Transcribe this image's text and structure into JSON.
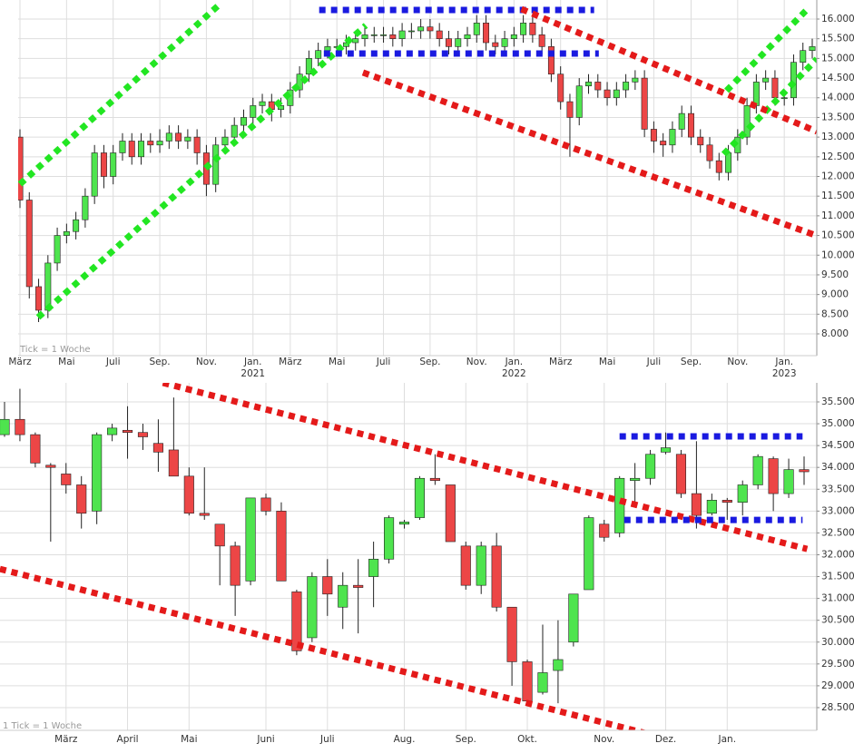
{
  "chart_data": [
    {
      "type": "candlestick",
      "up_color": "#4ee44e",
      "down_color": "#ec4646",
      "grid": true,
      "annotation": "Tick = 1 Woche",
      "categories": [
        "März",
        null,
        null,
        null,
        null,
        "Mai",
        null,
        null,
        null,
        null,
        "Juli",
        null,
        null,
        null,
        null,
        "Sep.",
        null,
        null,
        null,
        null,
        "Nov.",
        null,
        null,
        null,
        null,
        "Jan.",
        null,
        null,
        null,
        "März",
        null,
        null,
        null,
        null,
        "Mai",
        null,
        null,
        null,
        null,
        "Juli",
        null,
        null,
        null,
        null,
        "Sep.",
        null,
        null,
        null,
        null,
        "Nov.",
        null,
        null,
        null,
        "Jan.",
        null,
        null,
        null,
        null,
        "März",
        null,
        null,
        null,
        null,
        "Mai",
        null,
        null,
        null,
        null,
        "Juli",
        null,
        null,
        null,
        "Sep.",
        null,
        null,
        null,
        null,
        "Nov.",
        null,
        null,
        null,
        null,
        "Jan.",
        null,
        null,
        null
      ],
      "years": [
        null,
        null,
        null,
        null,
        null,
        null,
        null,
        null,
        null,
        null,
        null,
        null,
        null,
        null,
        null,
        null,
        null,
        null,
        null,
        null,
        null,
        null,
        null,
        null,
        null,
        "2021",
        null,
        null,
        null,
        null,
        null,
        null,
        null,
        null,
        null,
        null,
        null,
        null,
        null,
        null,
        null,
        null,
        null,
        null,
        null,
        null,
        null,
        null,
        null,
        null,
        null,
        null,
        null,
        "2022",
        null,
        null,
        null,
        null,
        null,
        null,
        null,
        null,
        null,
        null,
        null,
        null,
        null,
        null,
        null,
        null,
        null,
        null,
        null,
        null,
        null,
        null,
        null,
        null,
        null,
        null,
        null,
        null,
        "2023",
        null,
        null,
        null
      ],
      "open": [
        13000,
        11400,
        9200,
        8600,
        9800,
        10500,
        10600,
        10900,
        11500,
        12600,
        12000,
        12600,
        12900,
        12500,
        12900,
        12800,
        12900,
        13100,
        12900,
        13000,
        12600,
        11800,
        12800,
        13000,
        13300,
        13500,
        13800,
        13900,
        13700,
        13800,
        14200,
        14600,
        15000,
        15200,
        15300,
        15300,
        15400,
        15500,
        15600,
        15600,
        15600,
        15500,
        15700,
        15700,
        15800,
        15700,
        15500,
        15300,
        15500,
        15600,
        15900,
        15400,
        15300,
        15500,
        15600,
        15900,
        15600,
        15300,
        14600,
        13900,
        13500,
        14300,
        14400,
        14200,
        14000,
        14200,
        14400,
        14500,
        13200,
        12900,
        12800,
        13200,
        13600,
        13000,
        12800,
        12400,
        12100,
        12600,
        13000,
        13800,
        14400,
        14500,
        14000,
        14000,
        14900,
        15200
      ],
      "high": [
        13200,
        11600,
        9400,
        10000,
        10700,
        10800,
        11100,
        11700,
        12800,
        12800,
        12800,
        13100,
        13100,
        13100,
        13100,
        13200,
        13300,
        13300,
        13200,
        13200,
        12800,
        13000,
        13200,
        13500,
        13700,
        14000,
        14100,
        14100,
        14000,
        14400,
        14800,
        15200,
        15400,
        15500,
        15500,
        15600,
        15700,
        15800,
        15800,
        15800,
        15800,
        15900,
        15900,
        16000,
        16000,
        15900,
        15700,
        15700,
        15800,
        16100,
        16100,
        15600,
        15700,
        15800,
        16100,
        16100,
        15800,
        15500,
        14800,
        14100,
        14500,
        14600,
        14600,
        14400,
        14400,
        14600,
        14700,
        14700,
        13400,
        13100,
        13400,
        13800,
        13800,
        13200,
        13000,
        12600,
        12800,
        13200,
        14000,
        14600,
        14700,
        14700,
        14200,
        15100,
        15400,
        15500
      ],
      "low": [
        11200,
        8900,
        8300,
        8400,
        9600,
        10300,
        10400,
        10700,
        11300,
        11700,
        11800,
        12400,
        12300,
        12300,
        12600,
        12600,
        12700,
        12700,
        12700,
        12300,
        11500,
        11600,
        12600,
        12800,
        13100,
        13300,
        13600,
        13400,
        13500,
        13600,
        14000,
        14400,
        14800,
        15000,
        15100,
        15100,
        15200,
        15300,
        15400,
        15400,
        15300,
        15300,
        15500,
        15500,
        15500,
        15300,
        15100,
        15100,
        15300,
        15400,
        15200,
        15100,
        15100,
        15300,
        15400,
        15400,
        15100,
        14400,
        13700,
        12500,
        13300,
        14100,
        14000,
        13800,
        13800,
        14000,
        14200,
        13000,
        12600,
        12500,
        12600,
        13000,
        12800,
        12600,
        12200,
        11900,
        11900,
        12400,
        12800,
        13600,
        14200,
        13800,
        13800,
        13800,
        14700,
        15000
      ],
      "close": [
        11400,
        9200,
        8600,
        9800,
        10500,
        10600,
        10900,
        11500,
        12600,
        12000,
        12600,
        12900,
        12500,
        12900,
        12800,
        12900,
        13100,
        12900,
        13000,
        12600,
        11800,
        12800,
        13000,
        13300,
        13500,
        13800,
        13900,
        13700,
        13800,
        14200,
        14600,
        15000,
        15200,
        15300,
        15300,
        15400,
        15500,
        15600,
        15600,
        15600,
        15500,
        15700,
        15700,
        15800,
        15700,
        15500,
        15300,
        15500,
        15600,
        15900,
        15400,
        15300,
        15500,
        15600,
        15900,
        15600,
        15300,
        14600,
        13900,
        13500,
        14300,
        14400,
        14200,
        14000,
        14200,
        14400,
        14500,
        13200,
        12900,
        12800,
        13200,
        13600,
        13000,
        12800,
        12400,
        12100,
        12600,
        13000,
        13800,
        14400,
        14500,
        14000,
        14000,
        14900,
        15200,
        15300
      ],
      "lines": [
        {
          "color": "#22e622",
          "x": [
            0,
            21.4
          ],
          "y": [
            11806,
            16369
          ]
        },
        {
          "color": "#22e622",
          "x": [
            1.95,
            37.1
          ],
          "y": [
            8420,
            15839
          ]
        },
        {
          "color": "#22e622",
          "x": [
            75.5,
            85.5
          ],
          "y": [
            12567,
            14986
          ]
        },
        {
          "color": "#22e622",
          "x": [
            75.8,
            84.3
          ],
          "y": [
            14180,
            16207
          ]
        },
        {
          "color": "#1a1ae0",
          "x": [
            32.1,
            61.6
          ],
          "y": [
            16230,
            16230
          ]
        },
        {
          "color": "#1a1ae0",
          "x": [
            32.6,
            62.1
          ],
          "y": [
            15124,
            15124
          ]
        },
        {
          "color": "#e41a1a",
          "x": [
            53.8,
            85.5
          ],
          "y": [
            16253,
            13143
          ]
        },
        {
          "color": "#e41a1a",
          "x": [
            36.8,
            85.5
          ],
          "y": [
            14641,
            10493
          ]
        }
      ],
      "ylim": [
        7447,
        16484
      ],
      "yticks": [
        {
          "value": 8000,
          "label": "8.000"
        },
        {
          "value": 8500,
          "label": "8.500"
        },
        {
          "value": 9000,
          "label": "9.000"
        },
        {
          "value": 9500,
          "label": "9.500"
        },
        {
          "value": 10000,
          "label": "10.000"
        },
        {
          "value": 10500,
          "label": "10.500"
        },
        {
          "value": 11000,
          "label": "11.000"
        },
        {
          "value": 11500,
          "label": "11.500"
        },
        {
          "value": 12000,
          "label": "12.000"
        },
        {
          "value": 12500,
          "label": "12.500"
        },
        {
          "value": 13000,
          "label": "13.000"
        },
        {
          "value": 13500,
          "label": "13.500"
        },
        {
          "value": 14000,
          "label": "14.000"
        },
        {
          "value": 14500,
          "label": "14.500"
        },
        {
          "value": 15000,
          "label": "15.000"
        },
        {
          "value": 15500,
          "label": "15.500"
        },
        {
          "value": 16000,
          "label": "16.000"
        }
      ]
    },
    {
      "type": "candlestick",
      "up_color": "#4ee44e",
      "down_color": "#ec4646",
      "grid": true,
      "annotation": "1 Tick = 1 Woche",
      "categories": [
        null,
        null,
        null,
        null,
        "März",
        null,
        null,
        null,
        "April",
        null,
        null,
        null,
        "Mai",
        null,
        null,
        null,
        null,
        "Juni",
        null,
        null,
        null,
        "Juli",
        null,
        null,
        null,
        null,
        "Aug.",
        null,
        null,
        null,
        "Sep.",
        null,
        null,
        null,
        "Okt.",
        null,
        null,
        null,
        null,
        "Nov.",
        null,
        null,
        null,
        "Dez.",
        null,
        null,
        null,
        "Jan.",
        null,
        null,
        null,
        null,
        null
      ],
      "open": [
        34750,
        35100,
        34750,
        34050,
        33850,
        33600,
        33000,
        34750,
        34850,
        34800,
        34550,
        34400,
        33800,
        32950,
        32700,
        32200,
        31400,
        33300,
        33000,
        31150,
        30100,
        31500,
        30800,
        31300,
        31500,
        31900,
        32700,
        32850,
        33750,
        33600,
        32200,
        31300,
        32200,
        30800,
        29550,
        28850,
        29350,
        30000,
        31200,
        32700,
        32500,
        33700,
        33750,
        34350,
        34300,
        33400,
        32950,
        33250,
        33200,
        33600,
        34200,
        33400,
        33950
      ],
      "high": [
        35500,
        35800,
        34800,
        34100,
        34100,
        33800,
        34800,
        35000,
        35400,
        35000,
        35100,
        35600,
        34000,
        34000,
        32700,
        32300,
        33300,
        33400,
        33200,
        31200,
        31600,
        31900,
        31600,
        31900,
        32300,
        32900,
        32800,
        33800,
        34300,
        33600,
        32300,
        32300,
        32500,
        30800,
        29600,
        30400,
        30500,
        31100,
        32900,
        32800,
        33800,
        34100,
        34400,
        34800,
        34400,
        34600,
        33400,
        33300,
        33700,
        34300,
        34250,
        34200,
        34250
      ],
      "low": [
        34700,
        34600,
        34000,
        32300,
        33400,
        32600,
        32700,
        34600,
        34200,
        34400,
        33900,
        33800,
        32900,
        32800,
        31300,
        30600,
        31300,
        32900,
        31400,
        29700,
        30000,
        30600,
        30300,
        30200,
        30800,
        31800,
        32600,
        32800,
        33600,
        32300,
        31200,
        31100,
        30700,
        29000,
        28600,
        28800,
        28600,
        29900,
        31200,
        32300,
        32400,
        33200,
        33600,
        34300,
        33300,
        32600,
        32900,
        32800,
        32900,
        33500,
        33000,
        33300,
        33600
      ],
      "close": [
        35100,
        34750,
        34100,
        34000,
        33600,
        32950,
        34750,
        34900,
        34800,
        34700,
        34350,
        33800,
        32950,
        32900,
        32200,
        31300,
        33300,
        33000,
        31400,
        29800,
        31500,
        31100,
        31300,
        31250,
        31900,
        32850,
        32750,
        33750,
        33700,
        32300,
        31300,
        32200,
        30800,
        29550,
        28650,
        29300,
        29600,
        31100,
        32850,
        32400,
        33750,
        33750,
        34300,
        34450,
        33400,
        32900,
        33250,
        33200,
        33600,
        34250,
        33400,
        33950,
        33900
      ],
      "lines": [
        {
          "color": "#e41a1a",
          "x": [
            10.3,
            52.2
          ],
          "y": [
            35937,
            32132
          ]
        },
        {
          "color": "#e41a1a",
          "x": [
            -0.3,
            44.5
          ],
          "y": [
            31675,
            27662
          ]
        },
        {
          "color": "#1a1ae0",
          "x": [
            40,
            51.9
          ],
          "y": [
            34710,
            34710
          ]
        },
        {
          "color": "#1a1ae0",
          "x": [
            40.3,
            51.9
          ],
          "y": [
            32797,
            32797
          ]
        }
      ],
      "ylim": [
        27980,
        35936
      ],
      "yticks": [
        {
          "value": 28500,
          "label": "28.500"
        },
        {
          "value": 29000,
          "label": "29.000"
        },
        {
          "value": 29500,
          "label": "29.500"
        },
        {
          "value": 30000,
          "label": "30.000"
        },
        {
          "value": 30500,
          "label": "30.500"
        },
        {
          "value": 31000,
          "label": "31.000"
        },
        {
          "value": 31500,
          "label": "31.500"
        },
        {
          "value": 32000,
          "label": "32.000"
        },
        {
          "value": 32500,
          "label": "32.500"
        },
        {
          "value": 33000,
          "label": "33.000"
        },
        {
          "value": 33500,
          "label": "33.500"
        },
        {
          "value": 34000,
          "label": "34.000"
        },
        {
          "value": 34500,
          "label": "34.500"
        },
        {
          "value": 35000,
          "label": "35.000"
        },
        {
          "value": 35500,
          "label": "35.500"
        }
      ]
    }
  ]
}
